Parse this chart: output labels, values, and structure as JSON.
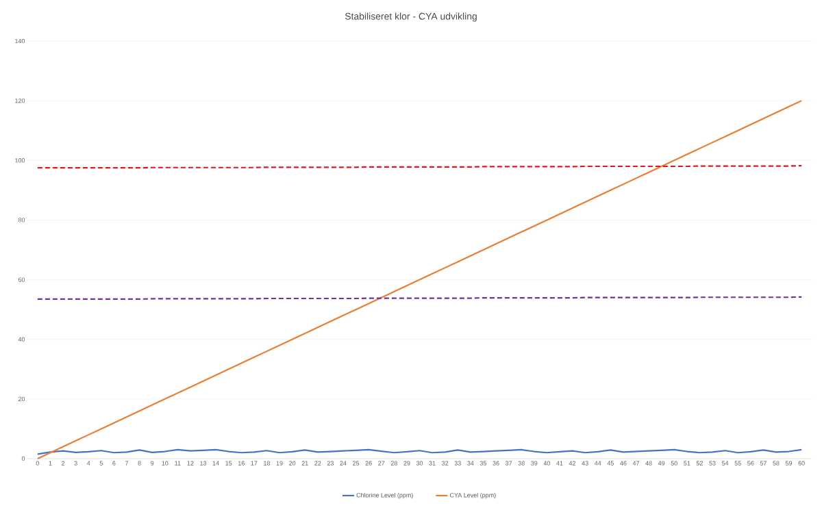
{
  "chart_data": {
    "type": "line",
    "title": "Stabiliseret klor - CYA udvikling",
    "categories": [
      "0",
      "1",
      "2",
      "3",
      "4",
      "5",
      "6",
      "7",
      "8",
      "9",
      "10",
      "11",
      "12",
      "13",
      "14",
      "15",
      "16",
      "17",
      "18",
      "19",
      "20",
      "21",
      "22",
      "23",
      "24",
      "25",
      "26",
      "27",
      "28",
      "29",
      "30",
      "31",
      "32",
      "33",
      "34",
      "35",
      "36",
      "37",
      "38",
      "39",
      "40",
      "41",
      "42",
      "43",
      "44",
      "45",
      "46",
      "47",
      "48",
      "49",
      "50",
      "51",
      "52",
      "53",
      "54",
      "55",
      "56",
      "57",
      "58",
      "59",
      "60"
    ],
    "series": [
      {
        "name": "Chlorine Level (ppm)",
        "color": "#4472c4",
        "values": [
          1.5,
          2.2,
          2.6,
          2.1,
          2.3,
          2.7,
          2.0,
          2.2,
          2.9,
          2.1,
          2.4,
          3.0,
          2.6,
          2.8,
          3.0,
          2.4,
          2.0,
          2.2,
          2.7,
          2.0,
          2.3,
          2.9,
          2.2,
          2.4,
          2.6,
          2.8,
          3.0,
          2.5,
          2.0,
          2.3,
          2.7,
          2.0,
          2.2,
          2.9,
          2.2,
          2.4,
          2.6,
          2.8,
          3.0,
          2.4,
          2.0,
          2.3,
          2.6,
          2.0,
          2.3,
          2.9,
          2.2,
          2.4,
          2.6,
          2.8,
          3.0,
          2.4,
          2.0,
          2.2,
          2.7,
          2.0,
          2.3,
          2.9,
          2.2,
          2.4,
          3.0
        ]
      },
      {
        "name": "CYA Level (ppm)",
        "color": "#ed7d31",
        "values": [
          0,
          2,
          4,
          6,
          8,
          10,
          12,
          14,
          16,
          18,
          20,
          22,
          24,
          26,
          28,
          30,
          32,
          34,
          36,
          38,
          40,
          42,
          44,
          46,
          48,
          50,
          52,
          54,
          56,
          58,
          60,
          62,
          64,
          66,
          68,
          70,
          72,
          74,
          76,
          78,
          80,
          82,
          84,
          86,
          88,
          90,
          92,
          94,
          96,
          98,
          100,
          102,
          104,
          106,
          108,
          110,
          112,
          114,
          116,
          118,
          120
        ]
      },
      {
        "color": "#e8141b",
        "line_style": "dashed",
        "values": [
          97.5,
          97.5,
          97.5,
          97.5,
          97.5,
          97.5,
          97.5,
          97.5,
          97.5,
          97.6,
          97.6,
          97.6,
          97.6,
          97.6,
          97.6,
          97.6,
          97.6,
          97.6,
          97.7,
          97.7,
          97.7,
          97.7,
          97.7,
          97.7,
          97.7,
          97.7,
          97.8,
          97.8,
          97.8,
          97.8,
          97.8,
          97.8,
          97.8,
          97.8,
          97.8,
          97.9,
          97.9,
          97.9,
          97.9,
          97.9,
          97.9,
          97.9,
          97.9,
          98.0,
          98.0,
          98.0,
          98.0,
          98.0,
          98.0,
          98.0,
          98.0,
          98.0,
          98.1,
          98.1,
          98.1,
          98.1,
          98.1,
          98.1,
          98.1,
          98.1,
          98.2
        ]
      },
      {
        "color": "#7030a0",
        "line_style": "dashed",
        "values": [
          53.5,
          53.5,
          53.5,
          53.5,
          53.5,
          53.5,
          53.5,
          53.5,
          53.5,
          53.6,
          53.6,
          53.6,
          53.6,
          53.6,
          53.6,
          53.6,
          53.6,
          53.6,
          53.7,
          53.7,
          53.7,
          53.7,
          53.7,
          53.7,
          53.7,
          53.7,
          53.8,
          53.8,
          53.8,
          53.8,
          53.8,
          53.8,
          53.8,
          53.8,
          53.8,
          53.9,
          53.9,
          53.9,
          53.9,
          53.9,
          53.9,
          53.9,
          53.9,
          54.0,
          54.0,
          54.0,
          54.0,
          54.0,
          54.0,
          54.0,
          54.0,
          54.0,
          54.1,
          54.1,
          54.1,
          54.1,
          54.1,
          54.1,
          54.1,
          54.1,
          54.2
        ]
      }
    ],
    "ylim": [
      0,
      140
    ],
    "yticks": [
      0,
      20,
      40,
      60,
      80,
      100,
      120,
      140
    ],
    "grid": "y",
    "legend": "bottom"
  }
}
